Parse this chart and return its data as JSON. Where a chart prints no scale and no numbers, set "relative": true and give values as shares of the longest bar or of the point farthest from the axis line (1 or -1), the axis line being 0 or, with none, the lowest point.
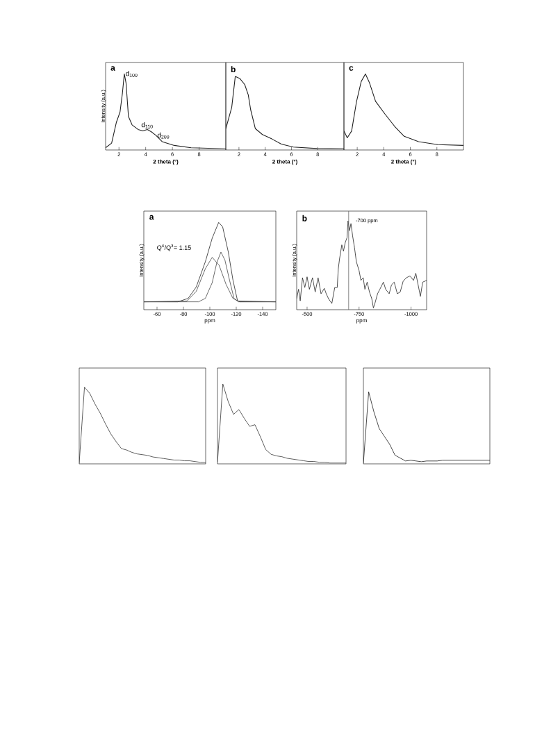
{
  "chart_data": [
    {
      "type": "line",
      "relative": true,
      "title": "a",
      "xlabel": "2 theta (°)",
      "ylabel": "Intensity (a.u.)",
      "xlim": [
        1,
        10
      ],
      "xticks": [
        2,
        4,
        6,
        8
      ],
      "tick_labels": "x",
      "x": [
        1.0,
        1.45,
        1.8,
        2.08,
        2.26,
        2.4,
        2.53,
        2.71,
        2.98,
        3.43,
        3.79,
        4.12,
        4.42,
        4.78,
        5.23,
        6.14,
        7.4,
        10
      ],
      "series": [
        {
          "color": "#222222",
          "values": [
            0.03,
            0.09,
            0.36,
            0.5,
            0.75,
            1.0,
            0.88,
            0.44,
            0.33,
            0.27,
            0.25,
            0.27,
            0.24,
            0.19,
            0.11,
            0.06,
            0.03,
            0.016
          ]
        }
      ],
      "annotations": [
        {
          "text": "d$_{100}$",
          "x": 2.4,
          "y": 1.0
        },
        {
          "text": "d$_{110}$",
          "x": 4.12,
          "y": 0.27
        },
        {
          "text": "d$_{200}$",
          "x": 4.78,
          "y": 0.19
        }
      ]
    },
    {
      "type": "line",
      "relative": true,
      "title": "b",
      "xlabel": "2 theta (°)",
      "xlim": [
        1,
        10
      ],
      "xticks": [
        2,
        4,
        6,
        8
      ],
      "tick_labels": "x",
      "x": [
        1.0,
        1.45,
        1.72,
        2.08,
        2.44,
        2.71,
        2.89,
        3.25,
        3.79,
        4.51,
        5.23,
        6.14,
        7.94,
        10
      ],
      "series": [
        {
          "color": "#222222",
          "values": [
            0.29,
            0.58,
            1.0,
            0.97,
            0.89,
            0.75,
            0.55,
            0.29,
            0.21,
            0.15,
            0.08,
            0.04,
            0.02,
            0.016
          ]
        }
      ]
    },
    {
      "type": "line",
      "relative": true,
      "title": "c",
      "xlabel": "2 theta (°)",
      "xlim": [
        1,
        10
      ],
      "xticks": [
        2,
        4,
        6,
        8
      ],
      "tick_labels": "x",
      "x": [
        1.0,
        1.25,
        1.58,
        1.94,
        2.3,
        2.62,
        2.93,
        3.38,
        4.1,
        4.82,
        5.54,
        6.62,
        8.06,
        10
      ],
      "series": [
        {
          "color": "#222222",
          "values": [
            0.25,
            0.16,
            0.25,
            0.63,
            0.9,
            1.0,
            0.88,
            0.64,
            0.47,
            0.31,
            0.18,
            0.11,
            0.07,
            0.06
          ]
        }
      ]
    },
    {
      "type": "line",
      "relative": true,
      "title": "a",
      "xlabel": "ppm",
      "ylabel": "Intensity (a.u.)",
      "xlim": [
        -50,
        -150
      ],
      "xticks": [
        -60,
        -80,
        -100,
        -120,
        -140
      ],
      "tick_labels": "x",
      "series": [
        {
          "color": "#222222",
          "x": [
            -50,
            -75.7,
            -83.6,
            -89.7,
            -96.6,
            -101.8,
            -106.7,
            -109.7,
            -114,
            -117.5,
            -121,
            -150
          ],
          "values": [
            0.09,
            0.09,
            0.13,
            0.26,
            0.55,
            0.82,
            1.0,
            0.95,
            0.66,
            0.34,
            0.1,
            0.09
          ]
        },
        {
          "color": "#444444",
          "x": [
            -50,
            -82.7,
            -89.7,
            -96.6,
            -101.8,
            -107,
            -112.3,
            -117.5,
            -122.7,
            -150
          ],
          "values": [
            0.09,
            0.1,
            0.21,
            0.47,
            0.6,
            0.51,
            0.29,
            0.13,
            0.09,
            0.09
          ]
        },
        {
          "color": "#444444",
          "x": [
            -50,
            -91.4,
            -96.6,
            -101.8,
            -105.3,
            -108.4,
            -111.4,
            -114.9,
            -118.3,
            -121.8,
            -150
          ],
          "values": [
            0.09,
            0.09,
            0.13,
            0.31,
            0.54,
            0.66,
            0.57,
            0.34,
            0.13,
            0.09,
            0.09
          ]
        }
      ],
      "annotations": [
        "Q$^{4}$/Q$^{3}$= 1.15"
      ]
    },
    {
      "type": "line",
      "relative": true,
      "title": "b",
      "xlabel": "ppm",
      "ylabel": "Intensity (a.u.)",
      "xlim": [
        -450,
        -1075
      ],
      "xticks": [
        -500,
        -750,
        -1000
      ],
      "tick_labels": "x",
      "x": [
        -450,
        -459,
        -467,
        -478,
        -489,
        -500,
        -511,
        -526,
        -539,
        -553,
        -567,
        -583,
        -592,
        -603,
        -619,
        -633,
        -645,
        -650,
        -656,
        -667,
        -675,
        -684,
        -692,
        -697,
        -704,
        -711,
        -719,
        -728,
        -737,
        -750,
        -759,
        -770,
        -778,
        -789,
        -800,
        -811,
        -819,
        -826,
        -839,
        -850,
        -867,
        -878,
        -895,
        -906,
        -919,
        -934,
        -948,
        -962,
        -978,
        -995,
        -1012,
        -1023,
        -1034,
        -1045,
        -1056,
        -1075
      ],
      "series": [
        {
          "color": "#222222",
          "values": [
            0.125,
            0.23,
            0.1,
            0.36,
            0.25,
            0.37,
            0.23,
            0.36,
            0.2,
            0.36,
            0.18,
            0.24,
            0.18,
            0.125,
            0.07,
            0.25,
            0.25,
            0.46,
            0.57,
            0.73,
            0.66,
            0.76,
            0.81,
            1.0,
            0.89,
            0.97,
            0.83,
            0.7,
            0.54,
            0.44,
            0.33,
            0.36,
            0.23,
            0.31,
            0.2,
            0.125,
            0.02,
            0.07,
            0.18,
            0.23,
            0.31,
            0.23,
            0.18,
            0.28,
            0.31,
            0.18,
            0.2,
            0.32,
            0.36,
            0.38,
            0.33,
            0.41,
            0.28,
            0.15,
            0.31,
            0.33
          ]
        }
      ],
      "ref_lines": [
        {
          "axis": "x",
          "value": -700,
          "label": "-700 ppm",
          "color": "#666666"
        }
      ]
    },
    {
      "type": "line",
      "relative": true,
      "tick_labels": false,
      "categories": [
        null,
        null,
        null,
        null,
        null,
        null,
        null,
        null,
        null,
        null,
        null,
        null,
        null,
        null,
        null,
        null,
        null,
        null,
        null,
        null,
        null,
        null,
        null,
        null,
        null
      ],
      "series": [
        {
          "color": "#333333",
          "values": [
            0.01,
            1.0,
            0.92,
            0.78,
            0.66,
            0.52,
            0.39,
            0.29,
            0.2,
            0.18,
            0.15,
            0.13,
            0.12,
            0.11,
            0.09,
            0.08,
            0.07,
            0.06,
            0.05,
            0.05,
            0.04,
            0.04,
            0.03,
            0.02,
            0.02
          ]
        }
      ]
    },
    {
      "type": "line",
      "relative": true,
      "tick_labels": false,
      "categories": [
        null,
        null,
        null,
        null,
        null,
        null,
        null,
        null,
        null,
        null,
        null,
        null,
        null,
        null,
        null,
        null,
        null,
        null,
        null,
        null,
        null,
        null,
        null,
        null,
        null
      ],
      "series": [
        {
          "color": "#333333",
          "values": [
            0.02,
            1.0,
            0.78,
            0.62,
            0.68,
            0.57,
            0.47,
            0.49,
            0.34,
            0.18,
            0.12,
            0.1,
            0.09,
            0.07,
            0.06,
            0.05,
            0.04,
            0.03,
            0.03,
            0.02,
            0.02,
            0.01,
            0.01,
            0.01,
            0.01
          ]
        }
      ]
    },
    {
      "type": "line",
      "relative": true,
      "tick_labels": false,
      "categories": [
        null,
        null,
        null,
        null,
        null,
        null,
        null,
        null,
        null,
        null,
        null,
        null,
        null,
        null,
        null,
        null,
        null,
        null,
        null,
        null,
        null,
        null,
        null,
        null,
        null
      ],
      "series": [
        {
          "color": "#1a1a1a",
          "values": [
            0.01,
            1.0,
            0.72,
            0.49,
            0.38,
            0.27,
            0.12,
            0.08,
            0.04,
            0.05,
            0.04,
            0.03,
            0.04,
            0.04,
            0.04,
            0.05,
            0.05,
            0.05,
            0.05,
            0.05,
            0.05,
            0.05,
            0.05,
            0.05,
            0.05
          ]
        }
      ]
    }
  ]
}
